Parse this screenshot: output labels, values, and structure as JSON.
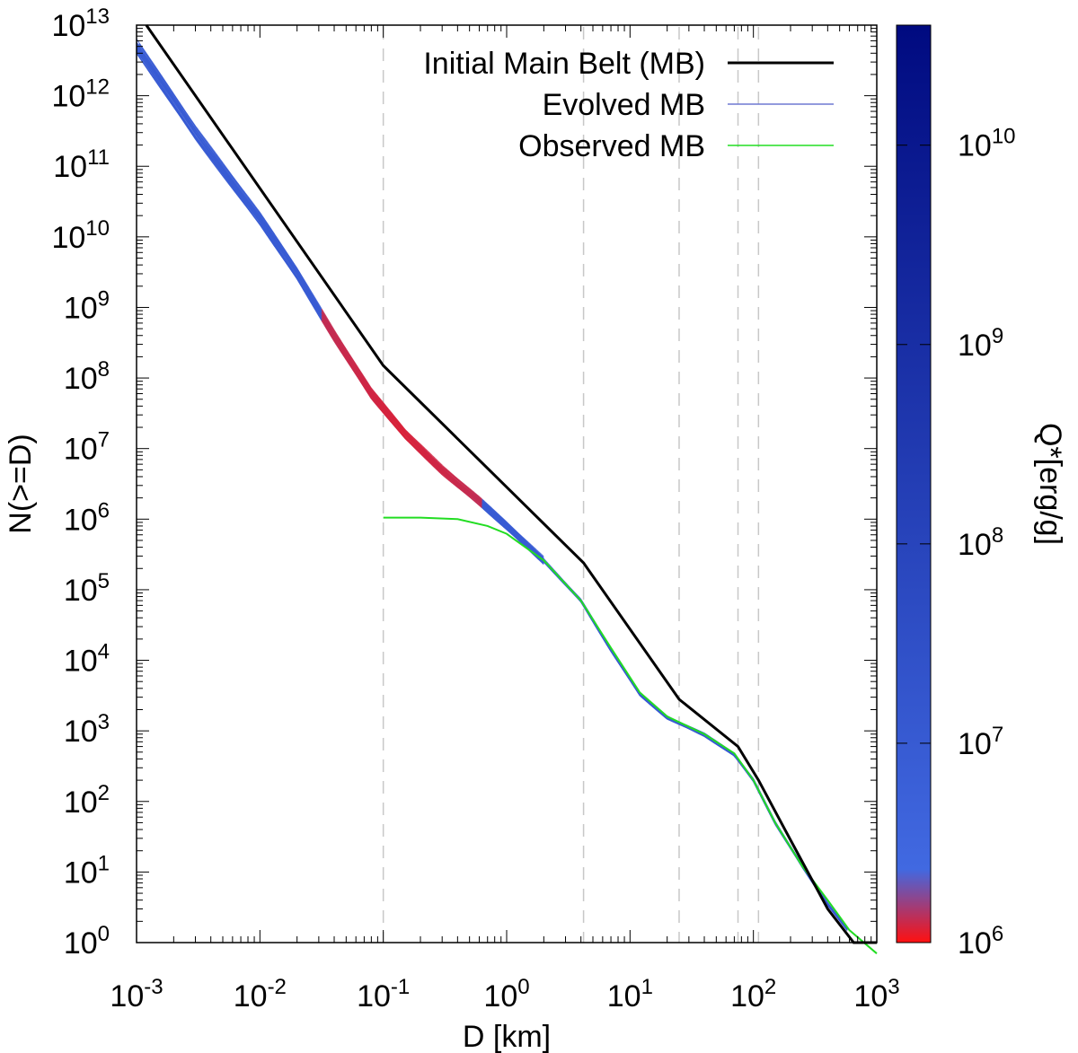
{
  "chart_data": {
    "type": "line",
    "xscale": "log",
    "yscale": "log",
    "xlim": [
      0.001,
      1000
    ],
    "ylim": [
      1,
      10000000000000
    ],
    "xlabel": "D [km]",
    "ylabel": "N(>=D)",
    "x_ticks": [
      {
        "base": "10",
        "exp": "-3",
        "value": 0.001
      },
      {
        "base": "10",
        "exp": "-2",
        "value": 0.01
      },
      {
        "base": "10",
        "exp": "-1",
        "value": 0.1
      },
      {
        "base": "10",
        "exp": "0",
        "value": 1
      },
      {
        "base": "10",
        "exp": "1",
        "value": 10
      },
      {
        "base": "10",
        "exp": "2",
        "value": 100
      },
      {
        "base": "10",
        "exp": "3",
        "value": 1000
      }
    ],
    "y_ticks": [
      {
        "base": "10",
        "exp": "0",
        "value": 1
      },
      {
        "base": "10",
        "exp": "1",
        "value": 10
      },
      {
        "base": "10",
        "exp": "2",
        "value": 100
      },
      {
        "base": "10",
        "exp": "3",
        "value": 1000
      },
      {
        "base": "10",
        "exp": "4",
        "value": 10000
      },
      {
        "base": "10",
        "exp": "5",
        "value": 100000
      },
      {
        "base": "10",
        "exp": "6",
        "value": 1000000
      },
      {
        "base": "10",
        "exp": "7",
        "value": 10000000
      },
      {
        "base": "10",
        "exp": "8",
        "value": 100000000
      },
      {
        "base": "10",
        "exp": "9",
        "value": 1000000000
      },
      {
        "base": "10",
        "exp": "10",
        "value": 10000000000
      },
      {
        "base": "10",
        "exp": "11",
        "value": 100000000000
      },
      {
        "base": "10",
        "exp": "12",
        "value": 1000000000000
      },
      {
        "base": "10",
        "exp": "13",
        "value": 10000000000000
      }
    ],
    "vertical_dashed_lines_at_D": [
      0.1,
      4.2,
      25,
      75,
      110
    ],
    "legend": {
      "placement": "top-right",
      "entries": [
        {
          "label": "Initial Main Belt (MB)",
          "color": "#000000"
        },
        {
          "label": "Evolved MB",
          "color": "#6e78d2"
        },
        {
          "label": "Observed MB",
          "color": "#22dd22"
        }
      ]
    },
    "series": [
      {
        "name": "Initial Main Belt (MB)",
        "color": "#000000",
        "points": [
          [
            0.0012,
            10000000000000.0
          ],
          [
            0.1,
            150000000.0
          ],
          [
            4.2,
            240000.0
          ],
          [
            25,
            2800.0
          ],
          [
            75,
            600.0
          ],
          [
            110,
            200.0
          ],
          [
            180,
            40.0
          ],
          [
            400,
            3.0
          ],
          [
            650,
            1.0
          ],
          [
            1000,
            1.0
          ]
        ]
      },
      {
        "name": "Observed MB",
        "color": "#22dd22",
        "points": [
          [
            0.1,
            1050000.0
          ],
          [
            0.2,
            1050000.0
          ],
          [
            0.4,
            1000000.0
          ],
          [
            0.7,
            800000.0
          ],
          [
            1.0,
            620000.0
          ],
          [
            2.0,
            260000.0
          ],
          [
            4.0,
            70000.0
          ],
          [
            7.0,
            15000.0
          ],
          [
            12,
            3500.0
          ],
          [
            20,
            1600.0
          ],
          [
            40,
            900.0
          ],
          [
            70,
            480.0
          ],
          [
            100,
            200.0
          ],
          [
            150,
            50.0
          ],
          [
            250,
            12.0
          ],
          [
            400,
            4.0
          ],
          [
            600,
            1.5
          ],
          [
            1000,
            0.7
          ]
        ]
      },
      {
        "name": "Evolved MB",
        "color": "#6e78d2",
        "ensemble_count": 32,
        "points": [
          [
            0.001,
            5000000000000.0
          ],
          [
            0.003,
            300000000000.0
          ],
          [
            0.01,
            18000000000.0
          ],
          [
            0.02,
            3000000000.0
          ],
          [
            0.04,
            400000000.0
          ],
          [
            0.08,
            60000000.0
          ],
          [
            0.15,
            16000000.0
          ],
          [
            0.3,
            5000000.0
          ],
          [
            0.6,
            1800000.0
          ],
          [
            1.0,
            800000.0
          ],
          [
            2.0,
            260000.0
          ],
          [
            4.0,
            70000.0
          ],
          [
            7.0,
            14000.0
          ],
          [
            12,
            3300.0
          ],
          [
            20,
            1550.0
          ],
          [
            40,
            880.0
          ],
          [
            70,
            460.0
          ],
          [
            100,
            200.0
          ],
          [
            150,
            50.0
          ],
          [
            250,
            12.0
          ],
          [
            400,
            3.5
          ],
          [
            600,
            1.4
          ]
        ]
      }
    ],
    "colorbar": {
      "label": "Q*[erg/g]",
      "scale": "log",
      "range": [
        1000000,
        40000000000
      ],
      "ticks": [
        {
          "base": "10",
          "exp": "6",
          "value": 1000000
        },
        {
          "base": "10",
          "exp": "7",
          "value": 10000000
        },
        {
          "base": "10",
          "exp": "8",
          "value": 100000000
        },
        {
          "base": "10",
          "exp": "9",
          "value": 1000000000
        },
        {
          "base": "10",
          "exp": "10",
          "value": 10000000000
        }
      ],
      "colors": [
        "#ff1010",
        "#4169e1",
        "#000a80"
      ]
    }
  }
}
